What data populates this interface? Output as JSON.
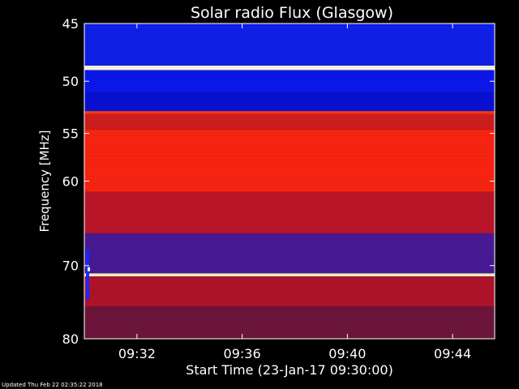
{
  "chart_data": {
    "type": "heatmap",
    "title": "Solar radio Flux (Glasgow)",
    "xlabel": "Start Time (23-Jan-17 09:30:00)",
    "ylabel": "Frequency [MHz]",
    "x_range_minutes": [
      0,
      15.6
    ],
    "x_ticks": [
      {
        "minute": 2,
        "label": "09:32"
      },
      {
        "minute": 6,
        "label": "09:36"
      },
      {
        "minute": 10,
        "label": "09:40"
      },
      {
        "minute": 14,
        "label": "09:44"
      }
    ],
    "ylim": [
      45,
      80
    ],
    "y_ticks": [
      45,
      50,
      55,
      60,
      70,
      80
    ],
    "colormap": [
      "#0000ff",
      "#d42020",
      "#ff2a14",
      "#ffffdd"
    ],
    "bands": [
      {
        "from": 45.0,
        "to": 48.6,
        "level": "low",
        "color": "#1020ee"
      },
      {
        "from": 48.6,
        "to": 49.0,
        "level": "saturated",
        "color": "#fffbe0"
      },
      {
        "from": 49.0,
        "to": 51.0,
        "level": "low",
        "color": "#0c18f0"
      },
      {
        "from": 51.0,
        "to": 52.8,
        "level": "low",
        "color": "#0a12d8"
      },
      {
        "from": 52.8,
        "to": 53.1,
        "level": "high",
        "color": "#ff3a10"
      },
      {
        "from": 53.1,
        "to": 54.6,
        "level": "mid",
        "color": "#d41e1e"
      },
      {
        "from": 54.6,
        "to": 61.2,
        "level": "high",
        "color": "#ff2412"
      },
      {
        "from": 61.2,
        "to": 66.0,
        "level": "mid",
        "color": "#c0162a"
      },
      {
        "from": 66.0,
        "to": 71.0,
        "level": "low-mid",
        "color": "#4a1a98"
      },
      {
        "from": 71.0,
        "to": 71.4,
        "level": "saturated",
        "color": "#fff6c8"
      },
      {
        "from": 71.4,
        "to": 75.4,
        "level": "mid",
        "color": "#b4142a"
      },
      {
        "from": 75.4,
        "to": 80.0,
        "level": "low-mid",
        "color": "#70153c"
      }
    ],
    "grid": false,
    "legend": "none"
  },
  "footer": {
    "updated": "Updated Thu Feb 22 02:35:22 2018"
  }
}
